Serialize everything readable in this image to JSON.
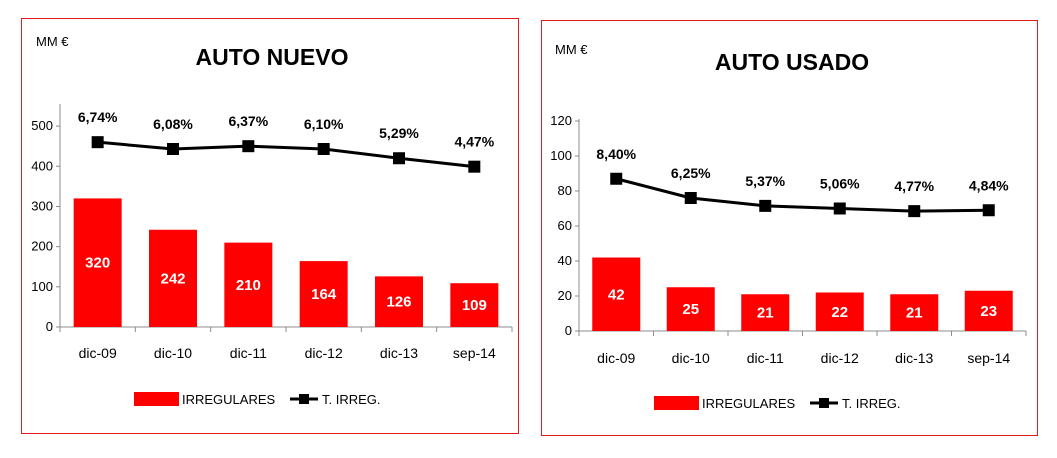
{
  "colors": {
    "bar": "#ff0000",
    "line": "#000000",
    "frame": "#e31b1b",
    "axis": "#8c8c8c"
  },
  "chart_data": [
    {
      "type": "bar",
      "title": "AUTO NUEVO",
      "unit": "MM €",
      "categories": [
        "dic-09",
        "dic-10",
        "dic-11",
        "dic-12",
        "dic-13",
        "sep-14"
      ],
      "ylim": [
        0,
        550
      ],
      "yticks": [
        0,
        100,
        200,
        300,
        400,
        500
      ],
      "series": [
        {
          "name": "IRREGULARES",
          "type": "bar",
          "values": [
            320,
            242,
            210,
            164,
            126,
            109
          ],
          "labels": [
            "320",
            "242",
            "210",
            "164",
            "126",
            "109"
          ]
        },
        {
          "name": "T. IRREG.",
          "type": "line",
          "values": [
            460,
            443,
            450,
            443,
            420,
            399
          ],
          "labels": [
            "6,74%",
            "6,08%",
            "6,37%",
            "6,10%",
            "5,29%",
            "4,47%"
          ]
        }
      ],
      "legend": "bottom"
    },
    {
      "type": "bar",
      "title": "AUTO USADO",
      "unit": "MM €",
      "categories": [
        "dic-09",
        "dic-10",
        "dic-11",
        "dic-12",
        "dic-13",
        "sep-14"
      ],
      "ylim": [
        0,
        120
      ],
      "yticks": [
        0,
        20,
        40,
        60,
        80,
        100,
        120
      ],
      "series": [
        {
          "name": "IRREGULARES",
          "type": "bar",
          "values": [
            42,
            25,
            21,
            22,
            21,
            23
          ],
          "labels": [
            "42",
            "25",
            "21",
            "22",
            "21",
            "23"
          ]
        },
        {
          "name": "T. IRREG.",
          "type": "line",
          "values": [
            87,
            76,
            71.5,
            70,
            68.5,
            69
          ],
          "labels": [
            "8,40%",
            "6,25%",
            "5,37%",
            "5,06%",
            "4,77%",
            "4,84%"
          ]
        }
      ],
      "legend": "bottom"
    }
  ]
}
